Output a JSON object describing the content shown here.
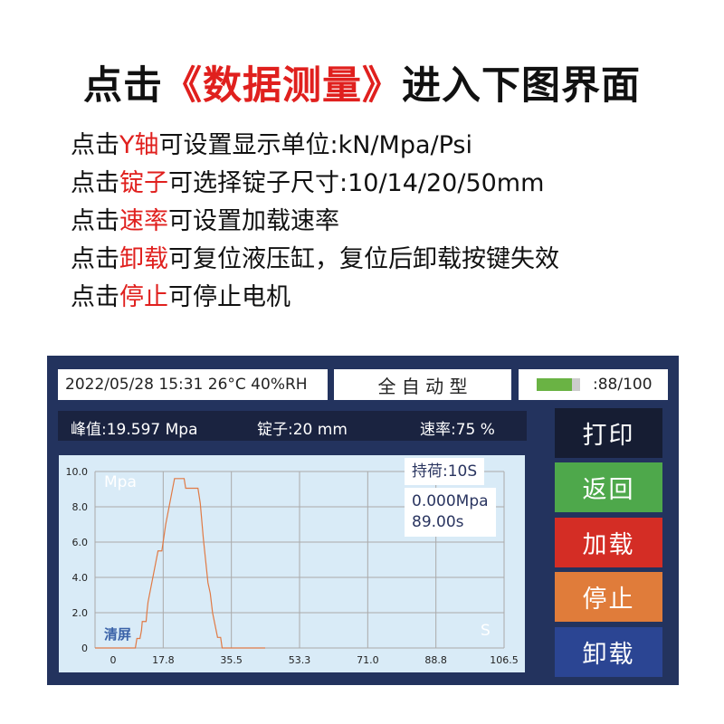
{
  "header": {
    "prefix": "点击",
    "highlight": "《数据测量》",
    "suffix": "进入下图界面"
  },
  "lines": [
    {
      "pre": "点击",
      "hl": "Y轴",
      "post": "可设置显示单位:kN/Mpa/Psi"
    },
    {
      "pre": "点击",
      "hl": "锭子",
      "post": "可选择锭子尺寸:10/14/20/50mm"
    },
    {
      "pre": "点击",
      "hl": "速率",
      "post": "可设置加载速率"
    },
    {
      "pre": "点击",
      "hl": "卸载",
      "post": "可复位液压缸，复位后卸载按键失效"
    },
    {
      "pre": "点击",
      "hl": "停止",
      "post": "可停止电机"
    }
  ],
  "status": {
    "datetime": "2022/05/28 15:31  26°C  40%RH",
    "mode": "全 自 动 型",
    "battery_text": ":88/100",
    "battery_level": 0.88
  },
  "readout": {
    "peak": "峰值:19.597  Mpa",
    "spindle": "锭子:20  mm",
    "rate": "速率:75  %"
  },
  "chart_info": {
    "hold": "持荷:10S",
    "pressure": "0.000Mpa",
    "time": "89.00s",
    "clear": "清屏",
    "y_unit": "Mpa",
    "x_unit": "S"
  },
  "buttons": {
    "print": "打印",
    "back": "返回",
    "load": "加载",
    "stop": "停止",
    "unload": "卸载"
  },
  "colors": {
    "accent": "#e0201e",
    "panel": "#23335e",
    "print": "#161d33",
    "back": "#4ea84b",
    "load": "#d42d25",
    "stop": "#e07c3a",
    "unload": "#2b4593",
    "line": "#e07a45",
    "battery": "#6ab344"
  },
  "chart_data": {
    "type": "line",
    "xlabel": "S",
    "ylabel": "Mpa",
    "xlim": [
      0,
      106.5
    ],
    "ylim": [
      0,
      10
    ],
    "grid": true,
    "x_ticks": [
      "0",
      "17.8",
      "35.5",
      "53.3",
      "71.0",
      "88.8",
      "106.5"
    ],
    "y_ticks": [
      "0",
      "2.0",
      "4.0",
      "6.0",
      "8.0",
      "10.0"
    ],
    "x": [
      0,
      10.5,
      10.9,
      11.7,
      12.1,
      12.3,
      13.3,
      13.5,
      13.8,
      16.4,
      17.4,
      18.4,
      20.7,
      23.2,
      23.6,
      26.8,
      27.4,
      28.2,
      29.4,
      30.0,
      30.6,
      31.9,
      32.7,
      33.1,
      44.3
    ],
    "y": [
      0,
      0,
      0.54,
      0.54,
      1.0,
      1.5,
      1.5,
      2.0,
      2.6,
      5.5,
      5.5,
      7.0,
      9.6,
      9.6,
      9.05,
      9.05,
      8.2,
      6.2,
      3.7,
      3.1,
      2.0,
      0.6,
      0.6,
      0,
      0
    ]
  }
}
